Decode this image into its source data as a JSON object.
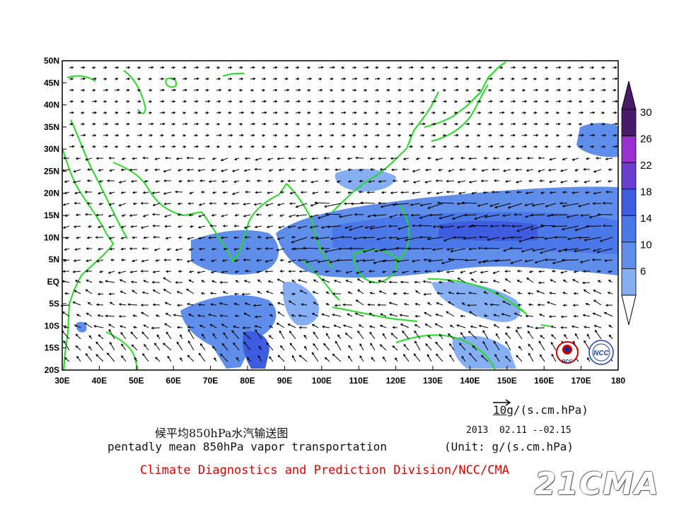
{
  "map": {
    "title_cn": "候平均850hPa水汽输送图",
    "title_en": "pentadly mean 850hPa vapor transportation",
    "date_range": "2013  02.11 --02.15",
    "unit": "(Unit: g/(s.cm.hPa)",
    "reference_vector_value": "10",
    "reference_vector_unit": "g/(s.cm.hPa)",
    "credit": "Climate Diagnostics and Prediction Division/NCC/CMA",
    "watermark": "21CMA",
    "logo_left_text": "BCC",
    "logo_right_text": "NCC",
    "lon_ticks": [
      "30E",
      "40E",
      "50E",
      "60E",
      "70E",
      "80E",
      "90E",
      "100E",
      "110E",
      "120E",
      "130E",
      "140E",
      "150E",
      "160E",
      "170E",
      "180"
    ],
    "lat_ticks": [
      "50N",
      "45N",
      "40N",
      "35N",
      "30N",
      "25N",
      "20N",
      "15N",
      "10N",
      "5N",
      "EQ",
      "5S",
      "10S",
      "15S",
      "20S"
    ],
    "colorbar": {
      "labels": [
        "30",
        "26",
        "22",
        "18",
        "14",
        "10",
        "6"
      ],
      "colors": [
        "#4a1a6a",
        "#9b30d0",
        "#6a3fd0",
        "#3d5ce0",
        "#4a78e8",
        "#5f8eea",
        "#86aef2"
      ]
    },
    "land_color": "#22dd22",
    "arrow_color": "#000000"
  }
}
